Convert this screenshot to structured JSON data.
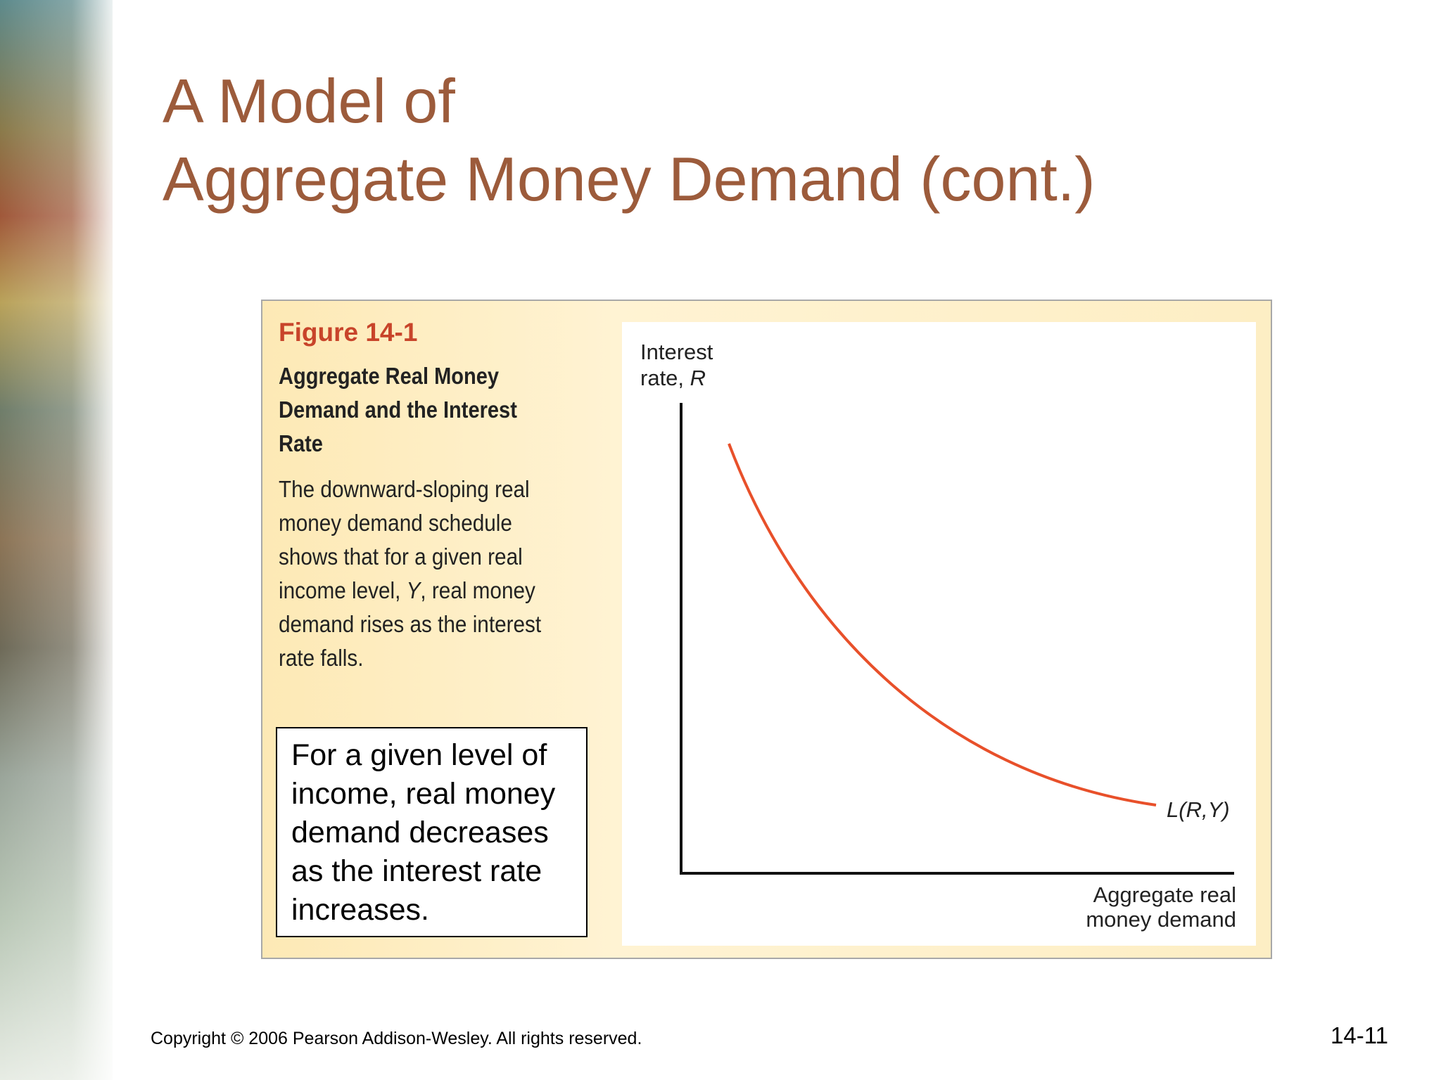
{
  "header": {
    "title_lines": [
      "A Model of",
      "Aggregate Money Demand (cont.)"
    ]
  },
  "figure": {
    "label": "Figure 14-1",
    "title_lines": [
      "Aggregate Real Money",
      "Demand and the Interest",
      "Rate"
    ],
    "caption_lines": [
      "The downward-sloping real",
      "money demand schedule",
      "shows that for a given real",
      [
        "income level, ",
        "Y",
        ", real money"
      ],
      "demand rises as the interest",
      "rate falls."
    ],
    "callout_lines": [
      "For a given level of",
      "income, real money",
      "demand decreases",
      "as the interest rate",
      "increases."
    ],
    "diagram": {
      "y_axis_label": [
        "Interest",
        "rate, ",
        "R"
      ],
      "x_axis_label": [
        "Aggregate real",
        "money demand"
      ],
      "curve_label": "L(R,Y)"
    }
  },
  "footer": {
    "copyright": "Copyright © 2006 Pearson Addison-Wesley. All rights reserved.",
    "page_number": "14-11"
  }
}
